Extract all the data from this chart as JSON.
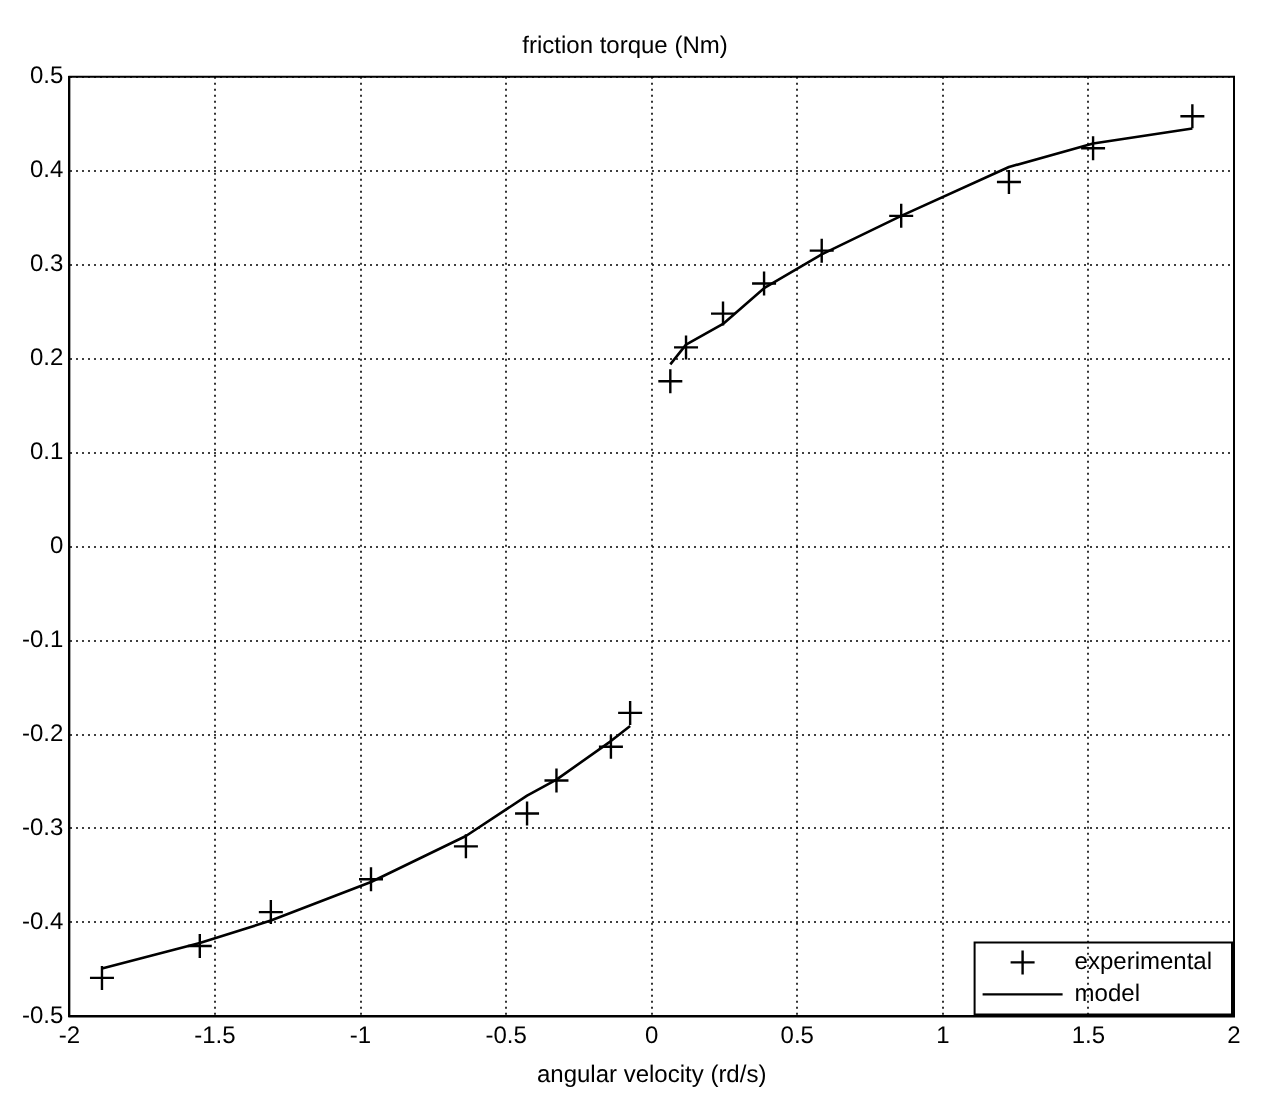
{
  "chart_data": {
    "type": "scatter",
    "title": "friction torque (Nm)",
    "xlabel": "angular velocity (rd/s)",
    "xlim": [
      -2,
      2
    ],
    "xticks": [
      -2,
      -1.5,
      -1,
      -0.5,
      0,
      0.5,
      1,
      1.5,
      2
    ],
    "ylim": [
      -0.5,
      0.5
    ],
    "yticks": [
      -0.5,
      -0.4,
      -0.3,
      -0.2,
      -0.1,
      0,
      0.1,
      0.2,
      0.3,
      0.4,
      0.5
    ],
    "grid": true,
    "legend": "bottom right",
    "series": [
      {
        "name": "experimental",
        "type": "scatter",
        "marker": "cross",
        "color": "#000000",
        "x": [
          -1.888,
          -1.552,
          -1.308,
          -0.964,
          -0.638,
          -0.428,
          -0.327,
          -0.14,
          -0.074,
          0.064,
          0.118,
          0.245,
          0.386,
          0.584,
          0.857,
          1.227,
          1.516,
          1.857
        ],
        "values": [
          -0.459,
          -0.425,
          -0.389,
          -0.354,
          -0.319,
          -0.284,
          -0.249,
          -0.213,
          -0.177,
          0.176,
          0.212,
          0.248,
          0.28,
          0.315,
          0.352,
          0.388,
          0.424,
          0.458
        ]
      },
      {
        "name": "model",
        "type": "line",
        "marker": "none",
        "line_style": "solid",
        "color": "#000000",
        "x": [
          -1.888,
          -1.552,
          -1.308,
          -0.964,
          -0.638,
          -0.428,
          -0.327,
          -0.14,
          -0.074,
          0,
          0.064,
          0.118,
          0.245,
          0.386,
          0.584,
          0.857,
          1.227,
          1.516,
          1.857
        ],
        "values": [
          -0.449,
          -0.422,
          -0.398,
          -0.357,
          -0.308,
          -0.265,
          -0.248,
          -0.207,
          -0.191,
          null,
          0.194,
          0.215,
          0.237,
          0.275,
          0.311,
          0.352,
          0.404,
          0.429,
          0.445
        ]
      }
    ]
  }
}
